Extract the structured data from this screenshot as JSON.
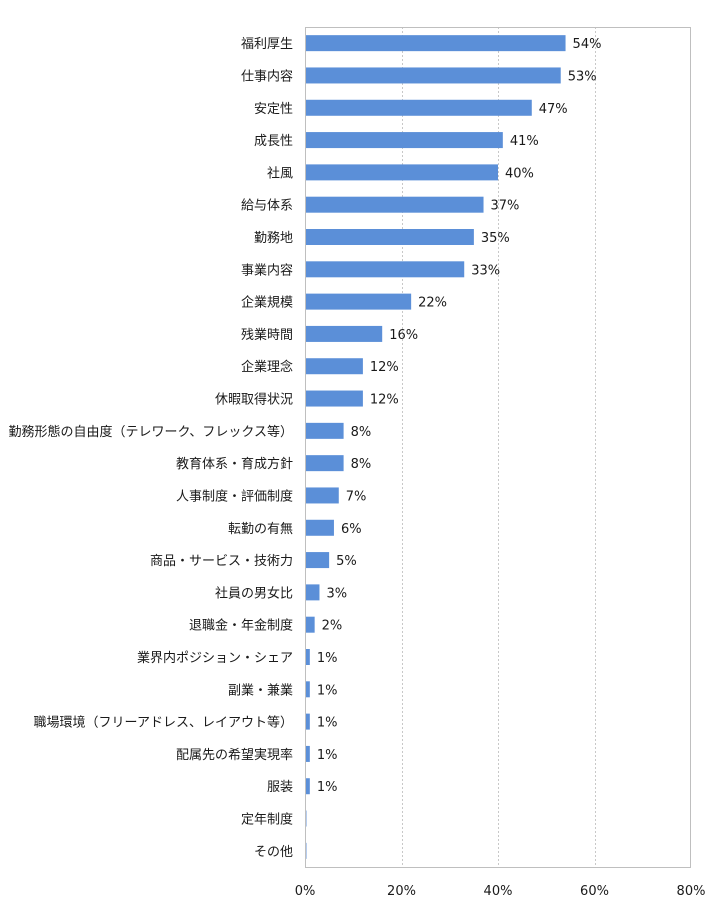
{
  "chart_data": {
    "type": "bar",
    "orientation": "horizontal",
    "title": "",
    "xlabel": "",
    "ylabel": "",
    "xlim": [
      0,
      80
    ],
    "x_ticks": [
      0,
      20,
      40,
      60,
      80
    ],
    "x_tick_format": "{v}%",
    "grid": "vertical-dashed",
    "legend": "none",
    "bar_color": "#5b8fd8",
    "categories": [
      "福利厚生",
      "仕事内容",
      "安定性",
      "成長性",
      "社風",
      "給与体系",
      "勤務地",
      "事業内容",
      "企業規模",
      "残業時間",
      "企業理念",
      "休暇取得状況",
      "勤務形態の自由度（テレワーク、フレックス等）",
      "教育体系・育成方針",
      "人事制度・評価制度",
      "転勤の有無",
      "商品・サービス・技術力",
      "社員の男女比",
      "退職金・年金制度",
      "業界内ポジション・シェア",
      "副業・兼業",
      "職場環境（フリーアドレス、レイアウト等）",
      "配属先の希望実現率",
      "服装",
      "定年制度",
      "その他"
    ],
    "values": [
      54,
      53,
      47,
      41,
      40,
      37,
      35,
      33,
      22,
      16,
      12,
      12,
      8,
      8,
      7,
      6,
      5,
      3,
      2,
      1,
      1,
      1,
      1,
      1,
      0.3,
      0.3
    ],
    "data_labels": [
      "54%",
      "53%",
      "47%",
      "41%",
      "40%",
      "37%",
      "35%",
      "33%",
      "22%",
      "16%",
      "12%",
      "12%",
      "8%",
      "8%",
      "7%",
      "6%",
      "5%",
      "3%",
      "2%",
      "1%",
      "1%",
      "1%",
      "1%",
      "1%",
      "",
      ""
    ]
  }
}
